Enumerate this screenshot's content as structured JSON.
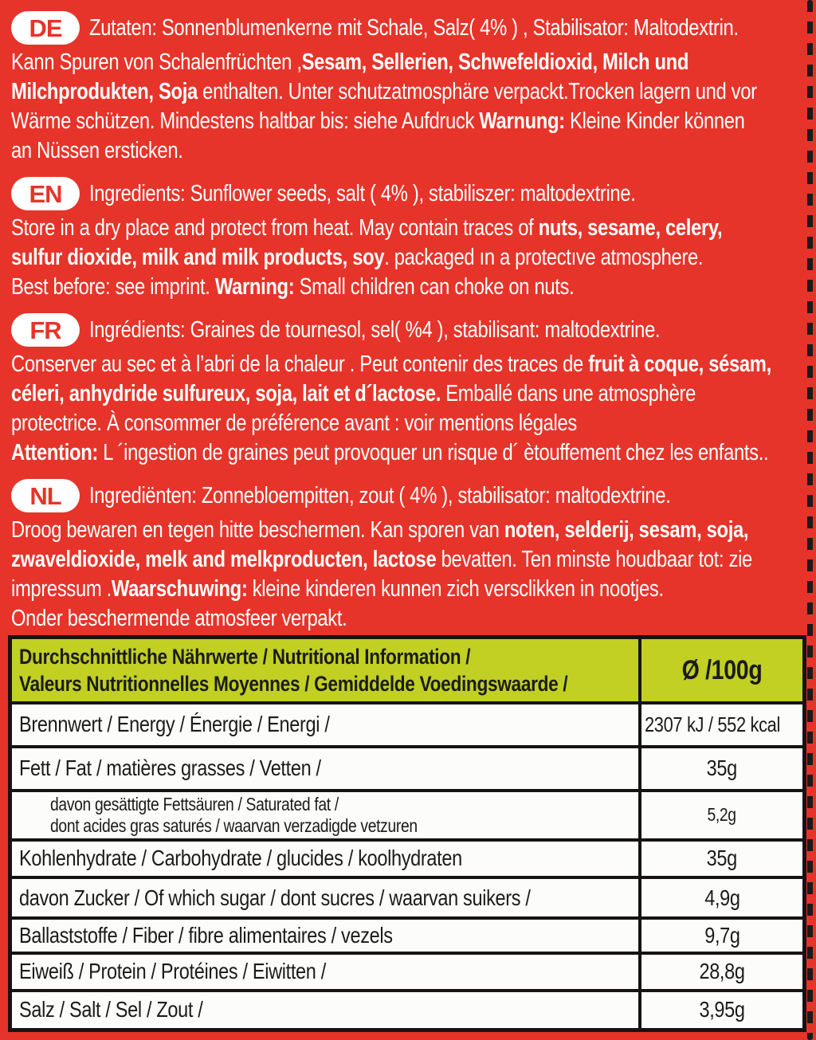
{
  "colors": {
    "background_red": "#e6342a",
    "text_white": "#ffffff",
    "badge_bg": "#ffffff",
    "badge_text": "#e6342a",
    "table_header_green": "#c1d023",
    "table_border_black": "#161412",
    "table_row_bg": "#fcfcfa",
    "table_text": "#1b1b1b",
    "dash_black": "#1a1a1a"
  },
  "sections": [
    {
      "code": "DE",
      "lines": [
        [
          {
            "t": "Zutaten: Sonnenblumenkerne mit Schale, Salz( 4% ) , Stabilisator: Maltodextrin.",
            "b": false
          }
        ],
        [
          {
            "t": "Kann Spuren von Schalenfrüchten ,",
            "b": false
          },
          {
            "t": "Sesam, Sellerien, Schwefeldioxid,  Milch und",
            "b": true
          }
        ],
        [
          {
            "t": "Milchprodukten, Soja",
            "b": true
          },
          {
            "t": " enthalten. Unter schutzatmosphäre verpackt.Trocken lagern und vor",
            "b": false
          }
        ],
        [
          {
            "t": "Wärme schützen. Mindestens haltbar bis: siehe Aufdruck ",
            "b": false
          },
          {
            "t": "Warnung:",
            "b": true
          },
          {
            "t": " Kleine Kinder können",
            "b": false
          }
        ],
        [
          {
            "t": "an Nüssen ersticken.",
            "b": false
          }
        ]
      ]
    },
    {
      "code": "EN",
      "lines": [
        [
          {
            "t": "Ingredients: Sunflower seeds, salt ( 4% ), stabiliszer: maltodextrine.",
            "b": false
          }
        ],
        [
          {
            "t": "Store in a dry place and protect from heat. May contain traces of ",
            "b": false
          },
          {
            "t": "nuts, sesame, celery,",
            "b": true
          }
        ],
        [
          {
            "t": "sulfur dioxide, milk and milk products, soy",
            "b": true
          },
          {
            "t": ". packaged ın a protectıve atmosphere.",
            "b": false
          }
        ],
        [
          {
            "t": "Best before: see imprint. ",
            "b": false
          },
          {
            "t": "Warning:",
            "b": true
          },
          {
            "t": " Small children can choke on nuts.",
            "b": false
          }
        ]
      ]
    },
    {
      "code": "FR",
      "lines": [
        [
          {
            "t": "Ingrédients: Graines de tournesol, sel( %4 ), stabilisant: maltodextrine.",
            "b": false
          }
        ],
        [
          {
            "t": "Conserver au sec et à l’abri de la chaleur . Peut contenir des traces de ",
            "b": false
          },
          {
            "t": "fruit à coque, sésam,",
            "b": true
          }
        ],
        [
          {
            "t": "céleri, anhydride sulfureux, soja, lait et d´lactose.",
            "b": true
          },
          {
            "t": " Emballé dans une atmosphère",
            "b": false
          }
        ],
        [
          {
            "t": "protectrice. À consommer de préférence avant : voir mentions légales",
            "b": false
          }
        ],
        [
          {
            "t": "Attention:",
            "b": true
          },
          {
            "t": " L ´ingestion de graines peut provoquer un risque d´ ètouffement chez les enfants..",
            "b": false
          }
        ]
      ]
    },
    {
      "code": "NL",
      "lines": [
        [
          {
            "t": "Ingrediënten: Zonnebloempitten, zout ( 4% ), stabilisator: maltodextrine.",
            "b": false
          }
        ],
        [
          {
            "t": "Droog bewaren en tegen hitte beschermen. Kan sporen van ",
            "b": false
          },
          {
            "t": "noten, selderij, sesam, soja,",
            "b": true
          }
        ],
        [
          {
            "t": "zwaveldioxide, melk and melkproducten, lactose",
            "b": true
          },
          {
            "t": "  bevatten. Ten minste houdbaar tot: zie",
            "b": false
          }
        ],
        [
          {
            "t": "impressum .",
            "b": false
          },
          {
            "t": "Waarschuwing:",
            "b": true
          },
          {
            "t": " kleine kinderen kunnen zich versclikken in nootjes.",
            "b": false
          }
        ],
        [
          {
            "t": "Onder beschermende atmosfeer verpakt.",
            "b": false
          }
        ]
      ]
    }
  ],
  "table": {
    "header": {
      "lines": [
        "Durchschnittliche Nährwerte / Nutritional Information /",
        "Valeurs Nutritionnelles Moyennes / Gemiddelde Voedingswaarde /"
      ],
      "per": "Ø /100g"
    },
    "rows": [
      {
        "lines": [
          "Brennwert / Energy / Énergie / Energi /"
        ],
        "value": "2307 kJ /  552 kcal",
        "value_align": "left"
      },
      {
        "lines": [
          "Fett / Fat / matières grasses / Vetten /"
        ],
        "value": "35g",
        "value_align": "center"
      },
      {
        "lines": [
          "davon gesättigte Fettsäuren / Saturated fat /",
          "dont acides gras saturés / waarvan verzadigde vetzuren"
        ],
        "value": "5,2g",
        "value_align": "center",
        "indent": true,
        "small": true
      },
      {
        "lines": [
          "Kohlenhydrate / Carbohydrate / glucides / koolhydraten"
        ],
        "value": "35g",
        "value_align": "center"
      },
      {
        "lines": [
          "davon Zucker / Of which sugar / dont sucres / waarvan suikers /"
        ],
        "value": "4,9g",
        "value_align": "center"
      },
      {
        "lines": [
          "Ballaststoffe / Fiber / fibre alimentaires / vezels"
        ],
        "value": "9,7g",
        "value_align": "center"
      },
      {
        "lines": [
          "Eiweiß / Protein / Protéines / Eiwitten /"
        ],
        "value": "28,8g",
        "value_align": "center"
      },
      {
        "lines": [
          "Salz / Salt / Sel / Zout /"
        ],
        "value": "3,95g",
        "value_align": "center"
      }
    ]
  }
}
